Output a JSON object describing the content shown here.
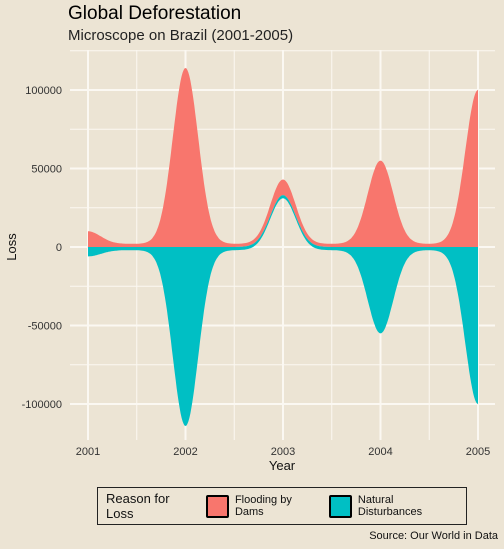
{
  "title": "Global Deforestation",
  "subtitle": "Microscope on Brazil (2001-2005)",
  "caption": "Source: Our World in Data",
  "legend": {
    "title": "Reason for Loss",
    "items": [
      {
        "label": "Flooding by Dams",
        "color": "#f8766d"
      },
      {
        "label": "Natural Disturbances",
        "color": "#00bfc4"
      }
    ]
  },
  "chart_data": {
    "type": "area",
    "xlabel": "Year",
    "ylabel": "Loss",
    "x": [
      2001,
      2002,
      2003,
      2004,
      2005
    ],
    "xticks": [
      "2001",
      "2002",
      "2003",
      "2004",
      "2005"
    ],
    "yticks": [
      "-100000",
      "-50000",
      "0",
      "50000",
      "100000"
    ],
    "ylim": [
      -120000,
      120000
    ],
    "series": [
      {
        "name": "Flooding by Dams",
        "color": "#f8766d",
        "values": [
          8000,
          112000,
          41000,
          53000,
          98000
        ]
      },
      {
        "name": "Natural Disturbances",
        "color": "#00bfc4",
        "values": [
          -4000,
          -112000,
          33000,
          -53000,
          -98000
        ]
      }
    ],
    "grid": true
  }
}
